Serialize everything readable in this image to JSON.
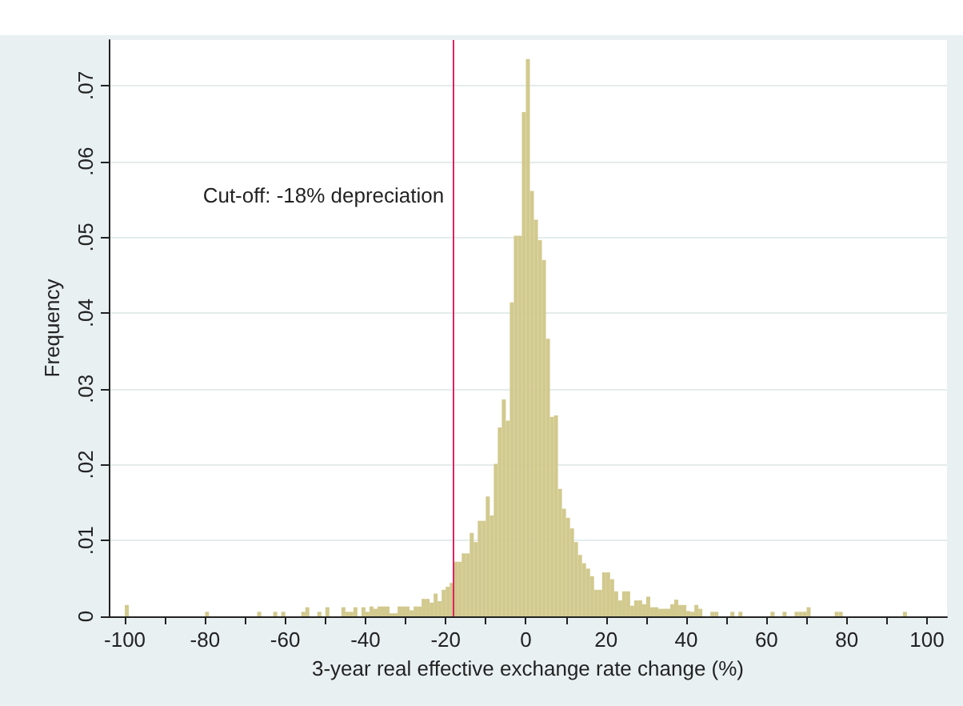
{
  "chart_data": {
    "type": "histogram",
    "xlabel": "3-year real effective exchange rate change (%)",
    "ylabel": "Frequency",
    "color": "#d2c98e",
    "bins": [
      -100,
      -99,
      -80,
      -79,
      -67,
      -66,
      -63,
      -62,
      -61,
      -60,
      -56,
      -55,
      -54,
      -52,
      -51,
      -50,
      -49,
      -46,
      -45,
      -44,
      -43,
      -42,
      -41,
      -40,
      -39,
      -38,
      -37,
      -36,
      -35,
      -34,
      -33,
      -32,
      -31,
      -30,
      -29,
      -28,
      -27,
      -26,
      -25,
      -24,
      -23,
      -22,
      -21,
      -20,
      -19,
      -18,
      -17,
      -16,
      -15,
      -14,
      -13,
      -12,
      -11,
      -10,
      -9,
      -8,
      -7,
      -6,
      -5,
      -4,
      -3,
      -2,
      -1,
      0,
      1,
      2,
      3,
      4,
      5,
      6,
      7,
      8,
      9,
      10,
      11,
      12,
      13,
      14,
      15,
      16,
      17,
      18,
      19,
      20,
      21,
      22,
      23,
      24,
      25,
      26,
      27,
      28,
      29,
      30,
      31,
      32,
      33,
      34,
      35,
      36,
      37,
      38,
      39,
      40,
      41,
      42,
      43,
      44,
      46,
      47,
      48,
      51,
      52,
      53,
      54,
      61,
      62,
      64,
      65,
      67,
      68,
      69,
      70,
      71,
      77,
      78,
      79,
      94,
      95
    ],
    "values": [
      0.0015,
      0,
      0.0006,
      0,
      0.0006,
      0,
      0.0006,
      0,
      0.0006,
      0,
      0.0006,
      0.0012,
      0,
      0.0006,
      0,
      0.0012,
      0,
      0.0012,
      0.0006,
      0.0006,
      0.0012,
      0,
      0.0012,
      0.0006,
      0.0013,
      0.001,
      0.0013,
      0.0013,
      0.0013,
      0.0004,
      0.0004,
      0.0013,
      0.0013,
      0.0013,
      0.0008,
      0.0013,
      0.0013,
      0.0023,
      0.0023,
      0.0018,
      0.003,
      0.002,
      0.0035,
      0.0039,
      0.0044,
      0.0072,
      0.0072,
      0.0083,
      0.0083,
      0.011,
      0.0098,
      0.0126,
      0.0126,
      0.0158,
      0.0133,
      0.0201,
      0.0249,
      0.0286,
      0.0258,
      0.0414,
      0.0502,
      0.0502,
      0.0665,
      0.0735,
      0.0561,
      0.0523,
      0.0496,
      0.047,
      0.0366,
      0.0263,
      0.0265,
      0.0168,
      0.0142,
      0.013,
      0.0116,
      0.0098,
      0.0081,
      0.007,
      0.0063,
      0.0053,
      0.0035,
      0.0035,
      0.0058,
      0.0058,
      0.0049,
      0.0033,
      0.0021,
      0.0033,
      0.0033,
      0.0014,
      0.0021,
      0.0021,
      0.0016,
      0.0026,
      0.0012,
      0.0012,
      0.001,
      0.001,
      0.001,
      0.0016,
      0.0022,
      0.0015,
      0.0015,
      0.0007,
      0.0006,
      0.0015,
      0.001,
      0,
      0.0006,
      0.0006,
      0,
      0.0006,
      0,
      0.0006,
      0,
      0.0006,
      0,
      0.0006,
      0,
      0.0006,
      0.0006,
      0.0006,
      0.0012,
      0,
      0.0006,
      0.0006,
      0,
      0.0006
    ],
    "xlim": [
      -104,
      105
    ],
    "xticks": [
      -100,
      {
        "value": -90,
        "label": null
      },
      -80,
      {
        "value": -70,
        "label": null
      },
      -60,
      {
        "value": -50,
        "label": null
      },
      -40,
      {
        "value": -30,
        "label": null
      },
      -20,
      {
        "value": -10,
        "label": null
      },
      0,
      {
        "value": 10,
        "label": null
      },
      20,
      {
        "value": 30,
        "label": null
      },
      40,
      {
        "value": 50,
        "label": null
      },
      60,
      {
        "value": 70,
        "label": null
      },
      80,
      {
        "value": 90,
        "label": null
      },
      100
    ],
    "ylim": [
      0,
      0.076
    ],
    "yticks": [
      0,
      {
        "value": 0.01,
        "label": ".01"
      },
      {
        "value": 0.02,
        "label": ".02"
      },
      {
        "value": 0.03,
        "label": ".03"
      },
      {
        "value": 0.04,
        "label": ".04"
      },
      {
        "value": 0.05,
        "label": ".05"
      },
      {
        "value": 0.06,
        "label": ".06"
      },
      {
        "value": 0.07,
        "label": ".07"
      }
    ],
    "grid": "y",
    "ref_lines": [
      {
        "axis": "x",
        "value": -18,
        "label": "Cut-off: -18% depreciation",
        "color": "#e0245e"
      }
    ]
  }
}
